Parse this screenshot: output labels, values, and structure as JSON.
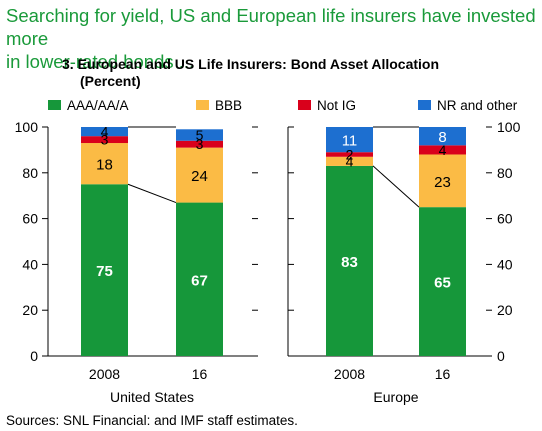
{
  "headline": [
    "Searching for yield, US and European life insurers have invested more",
    "in lower-rated bonds ..."
  ],
  "chart_title": "3. European and US Life Insurers: Bond Asset Allocation",
  "chart_unit": "(Percent)",
  "source": "Sources: SNL Financial: and IMF staff estimates.",
  "colors": {
    "AAA/AA/A": "#16973a",
    "BBB": "#fbbb45",
    "Not IG": "#d9001b",
    "NR and other": "#1d6fd0"
  },
  "chart_data": {
    "type": "bar",
    "stacked": true,
    "ylim": [
      0,
      100
    ],
    "yticks": [
      "0",
      "20",
      "40",
      "60",
      "80",
      "100"
    ],
    "legend_position": "top",
    "grid": false,
    "panels": [
      {
        "name": "United States",
        "categories": [
          "2008",
          "16"
        ],
        "series": [
          {
            "name": "AAA/AA/A",
            "values": [
              75,
              67
            ]
          },
          {
            "name": "BBB",
            "values": [
              18,
              24
            ]
          },
          {
            "name": "Not IG",
            "values": [
              3,
              3
            ]
          },
          {
            "name": "NR and other",
            "values": [
              4,
              5
            ]
          }
        ]
      },
      {
        "name": "Europe",
        "categories": [
          "2008",
          "16"
        ],
        "series": [
          {
            "name": "AAA/AA/A",
            "values": [
              83,
              65
            ]
          },
          {
            "name": "BBB",
            "values": [
              4,
              23
            ]
          },
          {
            "name": "Not IG",
            "values": [
              2,
              4
            ]
          },
          {
            "name": "NR and other",
            "values": [
              11,
              8
            ]
          }
        ]
      }
    ]
  }
}
